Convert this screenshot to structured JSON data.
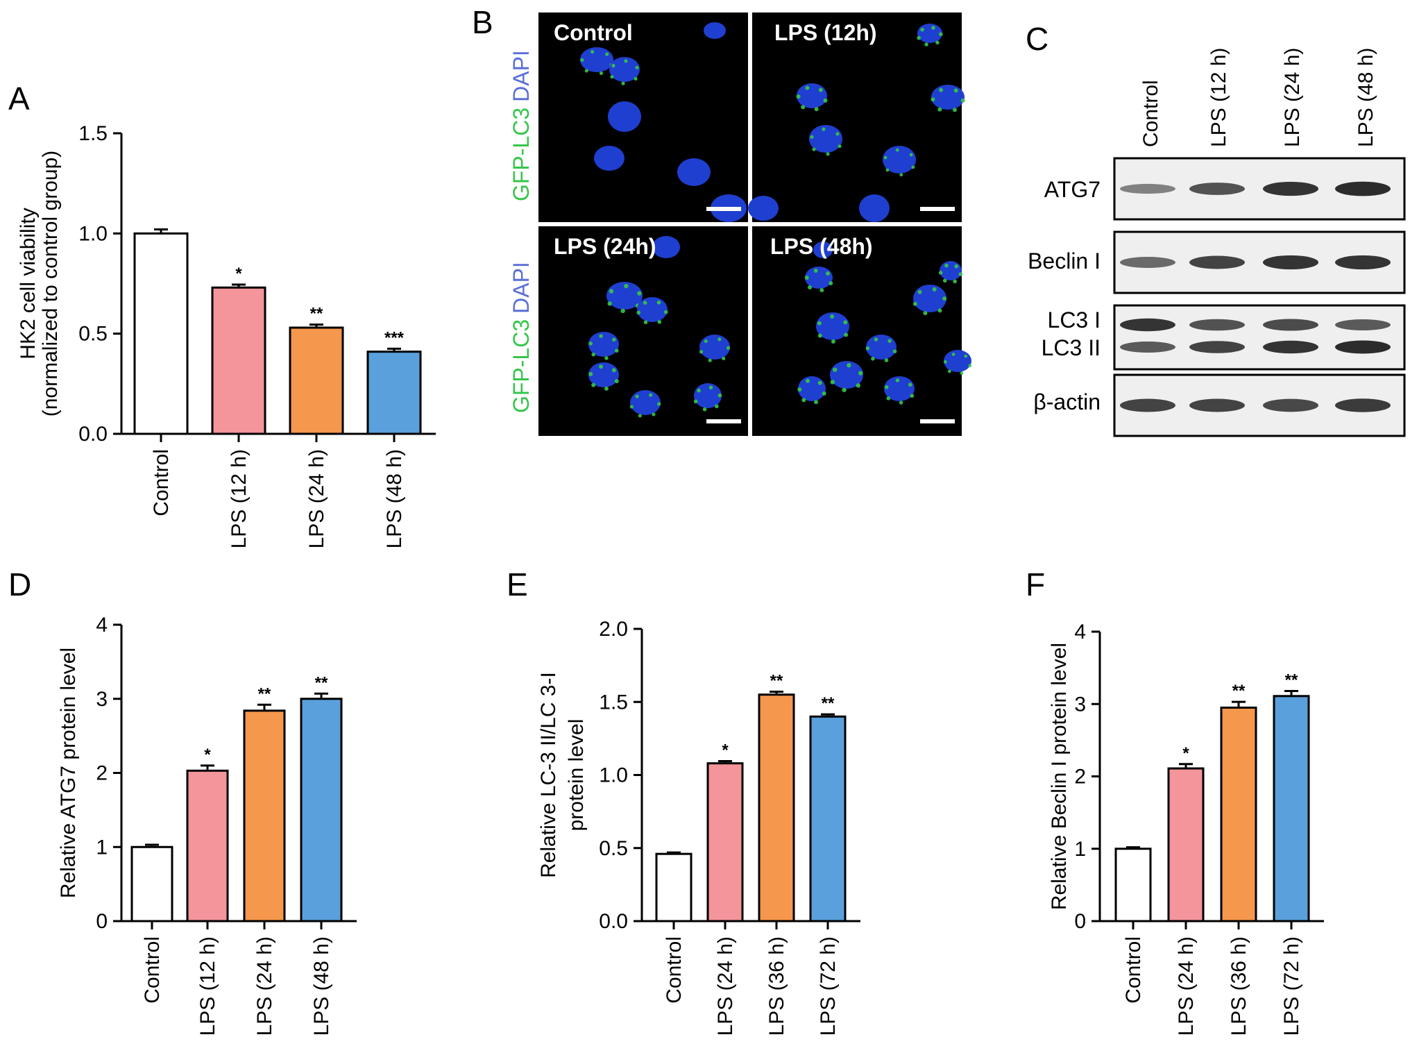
{
  "colors": {
    "control": "#ffffff",
    "lps_first": "#f4949b",
    "lps_second": "#f5974c",
    "lps_third": "#5aa0dc",
    "nucleus_blue": "#1f3fd0",
    "gfp_green": "#35c64a",
    "dapi_blue": "#5a6ed6"
  },
  "chart_data": [
    {
      "panel": "A",
      "type": "bar",
      "categories": [
        "Control",
        "LPS (12 h)",
        "LPS (24 h)",
        "LPS (48 h)"
      ],
      "values": [
        1.0,
        0.73,
        0.53,
        0.41
      ],
      "errors": [
        0.02,
        0.015,
        0.015,
        0.015
      ],
      "significance": [
        "",
        "*",
        "**",
        "***"
      ],
      "ylabel_lines": [
        "HK2 cell viability",
        "(normalized to control group)"
      ],
      "ylim": [
        0,
        1.5
      ],
      "yticks": [
        "0.0",
        "0.5",
        "1.0",
        "1.5"
      ]
    },
    {
      "panel": "D",
      "type": "bar",
      "categories": [
        "Control",
        "LPS (12 h)",
        "LPS (24 h)",
        "LPS (48 h)"
      ],
      "values": [
        1.0,
        2.03,
        2.84,
        3.0
      ],
      "errors": [
        0.03,
        0.07,
        0.08,
        0.07
      ],
      "significance": [
        "",
        "*",
        "**",
        "**"
      ],
      "ylabel_lines": [
        "Relative ATG7 protein level"
      ],
      "ylim": [
        0,
        4
      ],
      "yticks": [
        "0",
        "1",
        "2",
        "3",
        "4"
      ]
    },
    {
      "panel": "E",
      "type": "bar",
      "categories": [
        "Control",
        "LPS (24 h)",
        "LPS (36 h)",
        "LPS (72 h)"
      ],
      "values": [
        0.46,
        1.08,
        1.55,
        1.4
      ],
      "errors": [
        0.01,
        0.015,
        0.02,
        0.015
      ],
      "significance": [
        "",
        "*",
        "**",
        "**"
      ],
      "ylabel_lines": [
        "Relative LC-3 II/LC 3-I",
        "protein level"
      ],
      "ylim": [
        0,
        2.0
      ],
      "yticks": [
        "0.0",
        "0.5",
        "1.0",
        "1.5",
        "2.0"
      ]
    },
    {
      "panel": "F",
      "type": "bar",
      "categories": [
        "Control",
        "LPS (24 h)",
        "LPS (36 h)",
        "LPS (72 h)"
      ],
      "values": [
        1.0,
        2.11,
        2.95,
        3.11
      ],
      "errors": [
        0.02,
        0.06,
        0.08,
        0.07
      ],
      "significance": [
        "",
        "*",
        "**",
        "**"
      ],
      "ylabel_lines": [
        "Relative Beclin I protein level"
      ],
      "ylim": [
        0,
        4
      ],
      "yticks": [
        "0",
        "1",
        "2",
        "3",
        "4"
      ]
    }
  ],
  "microscopy": {
    "panel": "B",
    "side_labels": [
      {
        "green": "GFP-LC3",
        "blue": "DAPI"
      },
      {
        "green": "GFP-LC3",
        "blue": "DAPI"
      }
    ],
    "images": [
      {
        "label": "Control"
      },
      {
        "label": "LPS (12h)"
      },
      {
        "label": "LPS (24h)"
      },
      {
        "label": "LPS (48h)"
      }
    ]
  },
  "western_blot": {
    "panel": "C",
    "lanes": [
      "Control",
      "LPS (12 h)",
      "LPS (24 h)",
      "LPS (48 h)"
    ],
    "rows": [
      {
        "label": "ATG7",
        "intensity": [
          0.35,
          0.65,
          0.85,
          0.9
        ]
      },
      {
        "label": "Beclin I",
        "intensity": [
          0.5,
          0.75,
          0.85,
          0.85
        ]
      },
      {
        "label_top": "LC3 I",
        "label_bottom": "LC3 II",
        "intensity_top": [
          0.85,
          0.65,
          0.7,
          0.6
        ],
        "intensity_bottom": [
          0.6,
          0.75,
          0.85,
          0.9
        ]
      },
      {
        "label": "β-actin",
        "intensity": [
          0.75,
          0.75,
          0.72,
          0.8
        ]
      }
    ]
  }
}
